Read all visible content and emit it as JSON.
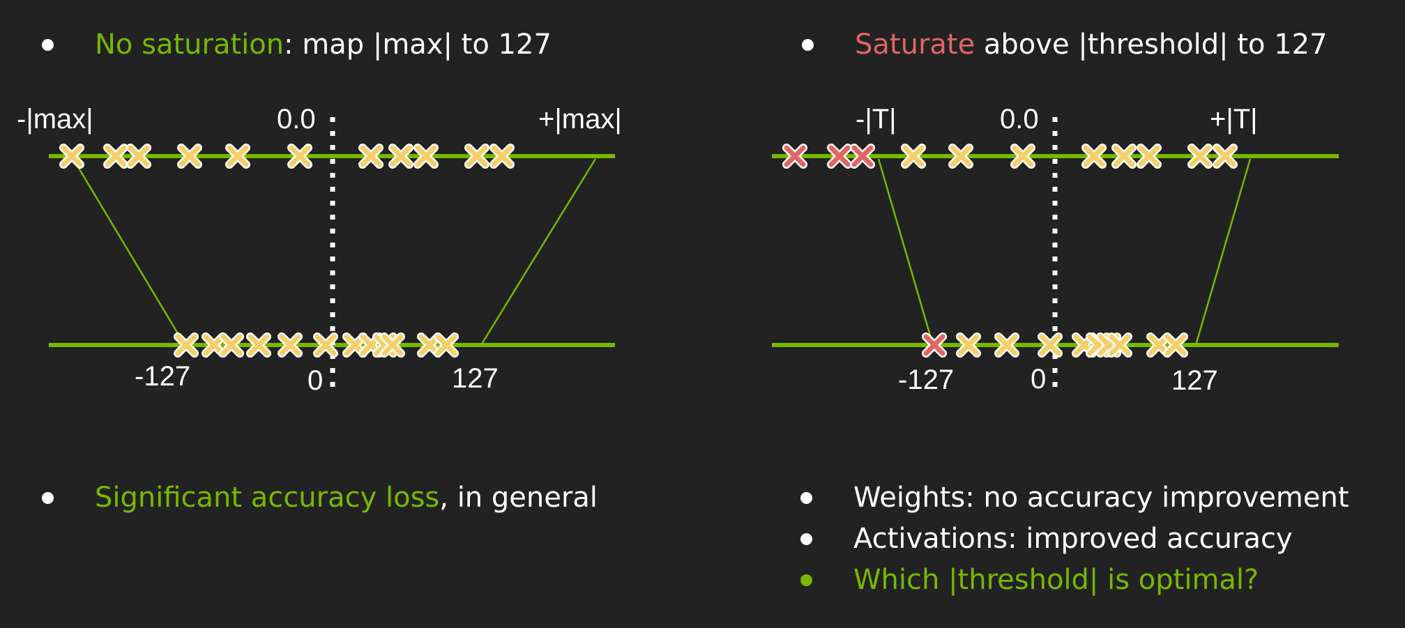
{
  "left_panel": {
    "heading": {
      "highlight": "No saturation",
      "rest": ": map |max| to 127"
    },
    "labels": {
      "neg_max": "-|max|",
      "zero_float": "0.0",
      "pos_max": "+|max|",
      "neg_127": "-127",
      "zero_int": "0",
      "pos_127": "127"
    },
    "conclusion": {
      "highlight": "Significant accuracy loss",
      "rest": ", in general"
    }
  },
  "right_panel": {
    "heading": {
      "highlight": "Saturate",
      "rest": " above |threshold| to 127"
    },
    "labels": {
      "neg_t": "-|T|",
      "zero_float": "0.0",
      "pos_t": "+|T|",
      "neg_127": "-127",
      "zero_int": "0",
      "pos_127": "127"
    },
    "conclusions": [
      {
        "text": "Weights: no accuracy improvement",
        "color": "#ffffff"
      },
      {
        "text": "Activations: improved accuracy",
        "color": "#ffffff"
      },
      {
        "text": "Which |threshold| is optimal?",
        "color": "#76b900"
      }
    ]
  },
  "colors": {
    "accent_green": "#76b900",
    "saturate_red": "#e06666",
    "marker_yellow": "#f4cf6a",
    "background": "#222222"
  }
}
